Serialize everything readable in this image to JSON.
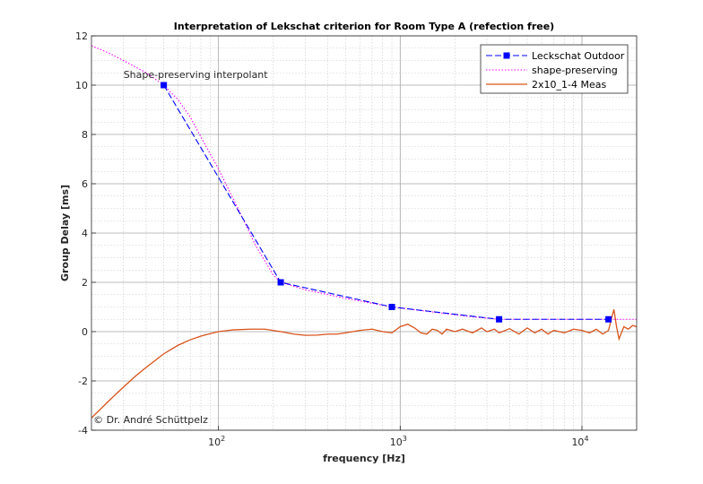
{
  "chart_data": {
    "type": "line",
    "title": "Interpretation of Lekschat criterion for Room Type A (refection free)",
    "xlabel": "frequency [Hz]",
    "ylabel": "Group Delay [ms]",
    "xscale": "log",
    "xlim": [
      20,
      20000
    ],
    "ylim": [
      -4,
      12
    ],
    "yticks": [
      -4,
      -2,
      0,
      2,
      4,
      6,
      8,
      10,
      12
    ],
    "ytick_labels": [
      "-4",
      "-2",
      "0",
      "2",
      "4",
      "6",
      "8",
      "10",
      "12"
    ],
    "xticks": [
      {
        "value": 100,
        "base": "10",
        "exp": "2"
      },
      {
        "value": 1000,
        "base": "10",
        "exp": "3"
      },
      {
        "value": 10000,
        "base": "10",
        "exp": "4"
      }
    ],
    "grid": true,
    "legend_position": "top-right",
    "series": [
      {
        "name": "Leckschat Outdoor",
        "style": "dashed-square-markers",
        "color": "#0000ff",
        "x": [
          50,
          220,
          900,
          3500,
          14000
        ],
        "y": [
          10,
          2,
          1,
          0.5,
          0.5
        ]
      },
      {
        "name": "shape-preserving",
        "style": "dotted",
        "color": "#ff00ff",
        "x": [
          20,
          25,
          30,
          40,
          50,
          60,
          70,
          80,
          100,
          130,
          160,
          200,
          220,
          300,
          500,
          900,
          1500,
          2500,
          3500,
          6000,
          10000,
          14000,
          20000
        ],
        "y": [
          11.6,
          11.3,
          11.0,
          10.5,
          10.0,
          9.4,
          8.7,
          7.9,
          6.6,
          4.9,
          3.5,
          2.3,
          2.0,
          1.7,
          1.35,
          1.0,
          0.8,
          0.6,
          0.5,
          0.5,
          0.5,
          0.5,
          0.5
        ]
      },
      {
        "name": "2x10_1-4 Meas",
        "style": "solid",
        "color": "#d95319",
        "x": [
          20,
          25,
          30,
          35,
          40,
          50,
          60,
          70,
          80,
          90,
          100,
          120,
          150,
          180,
          220,
          260,
          300,
          350,
          400,
          450,
          500,
          600,
          700,
          800,
          900,
          1000,
          1100,
          1200,
          1300,
          1400,
          1500,
          1600,
          1700,
          1800,
          2000,
          2200,
          2500,
          2800,
          3000,
          3300,
          3500,
          4000,
          4500,
          5000,
          5500,
          6000,
          6500,
          7000,
          8000,
          9000,
          10000,
          11000,
          12000,
          13000,
          14000,
          14500,
          15000,
          15500,
          16000,
          17000,
          18000,
          19000,
          20000
        ],
        "y": [
          -3.5,
          -2.8,
          -2.25,
          -1.8,
          -1.45,
          -0.9,
          -0.55,
          -0.33,
          -0.18,
          -0.08,
          0.0,
          0.07,
          0.1,
          0.1,
          0.0,
          -0.1,
          -0.15,
          -0.14,
          -0.1,
          -0.1,
          -0.05,
          0.05,
          0.1,
          0.0,
          -0.05,
          0.2,
          0.3,
          0.15,
          -0.05,
          -0.1,
          0.1,
          0.05,
          -0.1,
          0.1,
          0.0,
          0.1,
          -0.05,
          0.15,
          0.0,
          0.1,
          -0.05,
          0.12,
          -0.1,
          0.15,
          -0.05,
          0.1,
          -0.1,
          0.05,
          -0.05,
          0.1,
          0.05,
          -0.05,
          0.1,
          -0.1,
          0.05,
          0.5,
          0.9,
          0.2,
          -0.3,
          0.2,
          0.1,
          0.25,
          0.2
        ]
      }
    ],
    "annotations": [
      {
        "text": "Shape-preserving interpolant",
        "x": 30,
        "y": 10.3
      },
      {
        "text": "© Dr. André Schüttpelz",
        "x": 20.5,
        "y": -3.7
      }
    ]
  }
}
